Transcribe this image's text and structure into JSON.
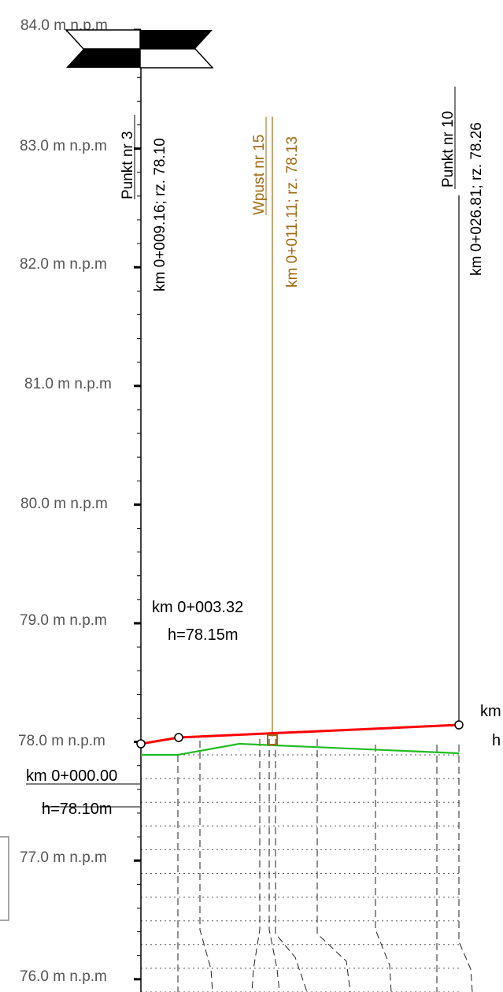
{
  "profile": {
    "levels": [
      {
        "value": 84.0,
        "label": "84.0 m n.p.m"
      },
      {
        "value": 83.0,
        "label": "83.0 m n.p.m"
      },
      {
        "value": 82.0,
        "label": "82.0 m n.p.m"
      },
      {
        "value": 81.0,
        "label": "81.0 m n.p.m"
      },
      {
        "value": 80.0,
        "label": "80.0 m n.p.m"
      },
      {
        "value": 79.0,
        "label": "79.0 m n.p.m"
      },
      {
        "value": 78.0,
        "label": "78.0 m n.p.m"
      },
      {
        "value": 77.0,
        "label": "77.0 m n.p.m"
      },
      {
        "value": 76.0,
        "label": "76.0 m n.p.m"
      }
    ],
    "points": [
      {
        "name": "Punkt nr 3",
        "station": "km 0+009.16; rz. 78.10"
      },
      {
        "name": "Punkt nr 10",
        "station": "km 0+026.81; rz. 78.26"
      }
    ],
    "inlet": {
      "name": "Wpust nr 15",
      "station": "km 0+011.11; rz. 78.13",
      "color": "#a06a10"
    },
    "annotations": [
      {
        "km": "km 0+003.32",
        "h": "h=78.15m"
      },
      {
        "km": "km 0+000.00",
        "h": "h=78.10m"
      },
      {
        "km": "km",
        "h": "h"
      }
    ],
    "colors": {
      "design_line": "#ff0000",
      "terrain_line": "#22bb22",
      "axis": "#000000"
    }
  }
}
